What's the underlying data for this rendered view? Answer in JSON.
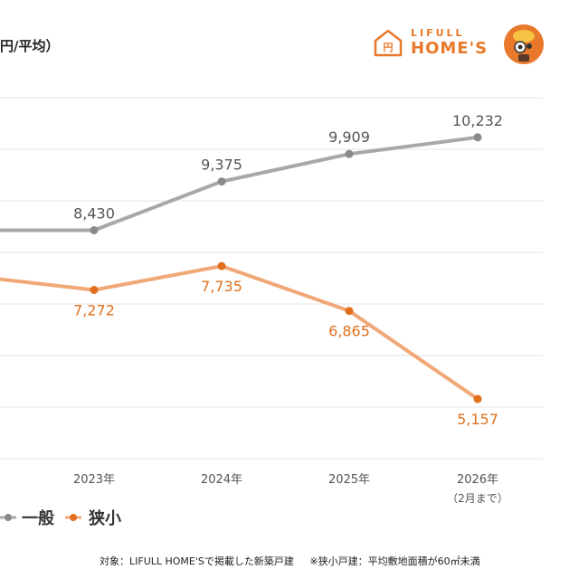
{
  "header": {
    "unit_label": "円/平均）",
    "logo_line1": "LIFULL",
    "logo_line2": "HOME'S"
  },
  "colors": {
    "general": "#a8a8a8",
    "small": "#f0a876",
    "small_point": "#e0701e",
    "small_label": "#e0701e",
    "general_label": "#555555",
    "grid": "#e6e6e6",
    "brand": "#e8792a"
  },
  "chart_data": {
    "type": "line",
    "x_labels": [
      "2023年",
      "2024年",
      "2025年",
      "2026年"
    ],
    "x_sublabels": [
      "",
      "",
      "",
      "（2月まで）"
    ],
    "series": [
      {
        "name": "一般",
        "values": [
          8430,
          9375,
          9909,
          10232
        ],
        "labels": [
          "8,430",
          "9,375",
          "9,909",
          "10,232"
        ]
      },
      {
        "name": "狭小",
        "values": [
          7272,
          7735,
          6865,
          5157
        ],
        "labels": [
          "7,272",
          "7,735",
          "6,865",
          "5,157"
        ]
      }
    ],
    "partial_series_values_left_edge": {
      "一般": 8430,
      "狭小": 7480
    },
    "ylim": [
      4000,
      11000
    ],
    "grid": true,
    "legend": "bottom-left"
  },
  "footer": {
    "note1": "対象：LIFULL HOME'Sで掲載した新築戸建",
    "note2": "※狭小戸建：平均敷地面積が60㎡未満"
  }
}
